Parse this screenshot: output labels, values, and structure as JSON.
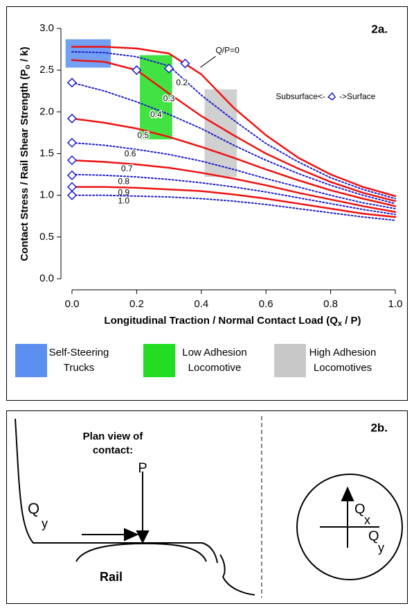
{
  "chart_data": {
    "type": "line",
    "panel_label": "2a.",
    "xlabel": {
      "text": "Longitudinal Traction / Normal Contact Load (Q",
      "sub": "x",
      "tail": " / P)"
    },
    "ylabel": {
      "text": "Contact Stress / Rail Shear Strength (P",
      "sub": "o",
      "tail": " / k)"
    },
    "xlim": [
      0,
      1
    ],
    "ylim": [
      0,
      3
    ],
    "xticks": [
      {
        "value": 0,
        "label": "0.0"
      },
      {
        "value": 0.2,
        "label": "0.2"
      },
      {
        "value": 0.4,
        "label": "0.4"
      },
      {
        "value": 0.6,
        "label": "0.6"
      },
      {
        "value": 0.8,
        "label": "0.8"
      },
      {
        "value": 1,
        "label": "1.0"
      }
    ],
    "yticks": [
      {
        "value": 0,
        "label": "0.0"
      },
      {
        "value": 0.5,
        "label": "0.5"
      },
      {
        "value": 1,
        "label": "1.0"
      },
      {
        "value": 1.5,
        "label": "1.5"
      },
      {
        "value": 2,
        "label": "2.0"
      },
      {
        "value": 2.5,
        "label": "2.5"
      },
      {
        "value": 3,
        "label": "3.0"
      }
    ],
    "x": [
      0,
      0.1,
      0.2,
      0.3,
      0.4,
      0.5,
      0.6,
      0.7,
      0.8,
      0.9,
      1.0
    ],
    "series": [
      {
        "name": "Q/P=0",
        "color": "#ee1111",
        "style": "solid",
        "values": [
          2.78,
          2.78,
          2.76,
          2.7,
          2.45,
          2.05,
          1.72,
          1.45,
          1.25,
          1.1,
          0.99
        ]
      },
      {
        "name": "0.2",
        "color": "#1a1acc",
        "style": "dotted",
        "values": [
          2.72,
          2.71,
          2.66,
          2.55,
          2.2,
          1.9,
          1.62,
          1.4,
          1.21,
          1.07,
          0.96
        ]
      },
      {
        "name": "0.3",
        "color": "#ee1111",
        "style": "solid",
        "values": [
          2.62,
          2.6,
          2.5,
          2.22,
          1.95,
          1.72,
          1.5,
          1.32,
          1.16,
          1.03,
          0.93
        ]
      },
      {
        "name": "0.4",
        "color": "#1a1acc",
        "style": "dotted",
        "values": [
          2.35,
          2.25,
          2.12,
          1.97,
          1.8,
          1.6,
          1.42,
          1.26,
          1.12,
          1.0,
          0.9
        ]
      },
      {
        "name": "0.5",
        "color": "#ee1111",
        "style": "solid",
        "values": [
          1.92,
          1.87,
          1.8,
          1.7,
          1.58,
          1.45,
          1.31,
          1.18,
          1.06,
          0.96,
          0.87
        ]
      },
      {
        "name": "0.6",
        "color": "#1a1acc",
        "style": "dotted",
        "values": [
          1.63,
          1.6,
          1.55,
          1.49,
          1.41,
          1.31,
          1.2,
          1.1,
          1.0,
          0.91,
          0.84
        ]
      },
      {
        "name": "0.7",
        "color": "#ee1111",
        "style": "solid",
        "values": [
          1.42,
          1.4,
          1.37,
          1.33,
          1.27,
          1.2,
          1.12,
          1.03,
          0.95,
          0.87,
          0.8
        ]
      },
      {
        "name": "0.8",
        "color": "#1a1acc",
        "style": "dotted",
        "values": [
          1.25,
          1.24,
          1.22,
          1.19,
          1.15,
          1.1,
          1.04,
          0.97,
          0.9,
          0.83,
          0.77
        ]
      },
      {
        "name": "0.9",
        "color": "#ee1111",
        "style": "solid",
        "values": [
          1.1,
          1.1,
          1.09,
          1.07,
          1.05,
          1.01,
          0.96,
          0.9,
          0.84,
          0.78,
          0.74
        ]
      },
      {
        "name": "1.0",
        "color": "#1a1acc",
        "style": "dotted",
        "values": [
          1.0,
          1.0,
          0.99,
          0.98,
          0.96,
          0.93,
          0.89,
          0.84,
          0.79,
          0.74,
          0.7
        ]
      }
    ],
    "markers": {
      "color": "#1a1acc",
      "x": [
        0,
        0,
        0,
        0,
        0,
        0,
        0,
        0.2,
        0.3,
        0.35
      ],
      "values": [
        2.35,
        1.92,
        1.63,
        1.42,
        1.24,
        1.1,
        1.0,
        2.5,
        2.52,
        2.58
      ]
    },
    "marker_note": [
      "Subsurface<-",
      "->Surface"
    ],
    "regions": [
      {
        "name": [
          "Self-Steering",
          "Trucks"
        ],
        "color": "#5b8ff0",
        "xlim": [
          -0.02,
          0.12
        ],
        "ylim": [
          2.53,
          2.87
        ]
      },
      {
        "name": [
          "Low Adhesion",
          "Locomotive"
        ],
        "color": "#22dd22",
        "xlim": [
          0.21,
          0.31
        ],
        "ylim": [
          1.67,
          2.68
        ]
      },
      {
        "name": [
          "High Adhesion",
          "Locomotives"
        ],
        "color": "#c8c8c8",
        "xlim": [
          0.41,
          0.51
        ],
        "ylim": [
          1.22,
          2.27
        ]
      }
    ]
  },
  "diagram": {
    "panel_label": "2b.",
    "caption": [
      "Plan view of",
      "contact:"
    ],
    "load": "P",
    "lateral": {
      "text": "Q",
      "sub": "y"
    },
    "rail": "Rail",
    "circle_x": {
      "text": "Q",
      "sub": "x"
    },
    "circle_y": {
      "text": "Q",
      "sub": "y"
    }
  }
}
